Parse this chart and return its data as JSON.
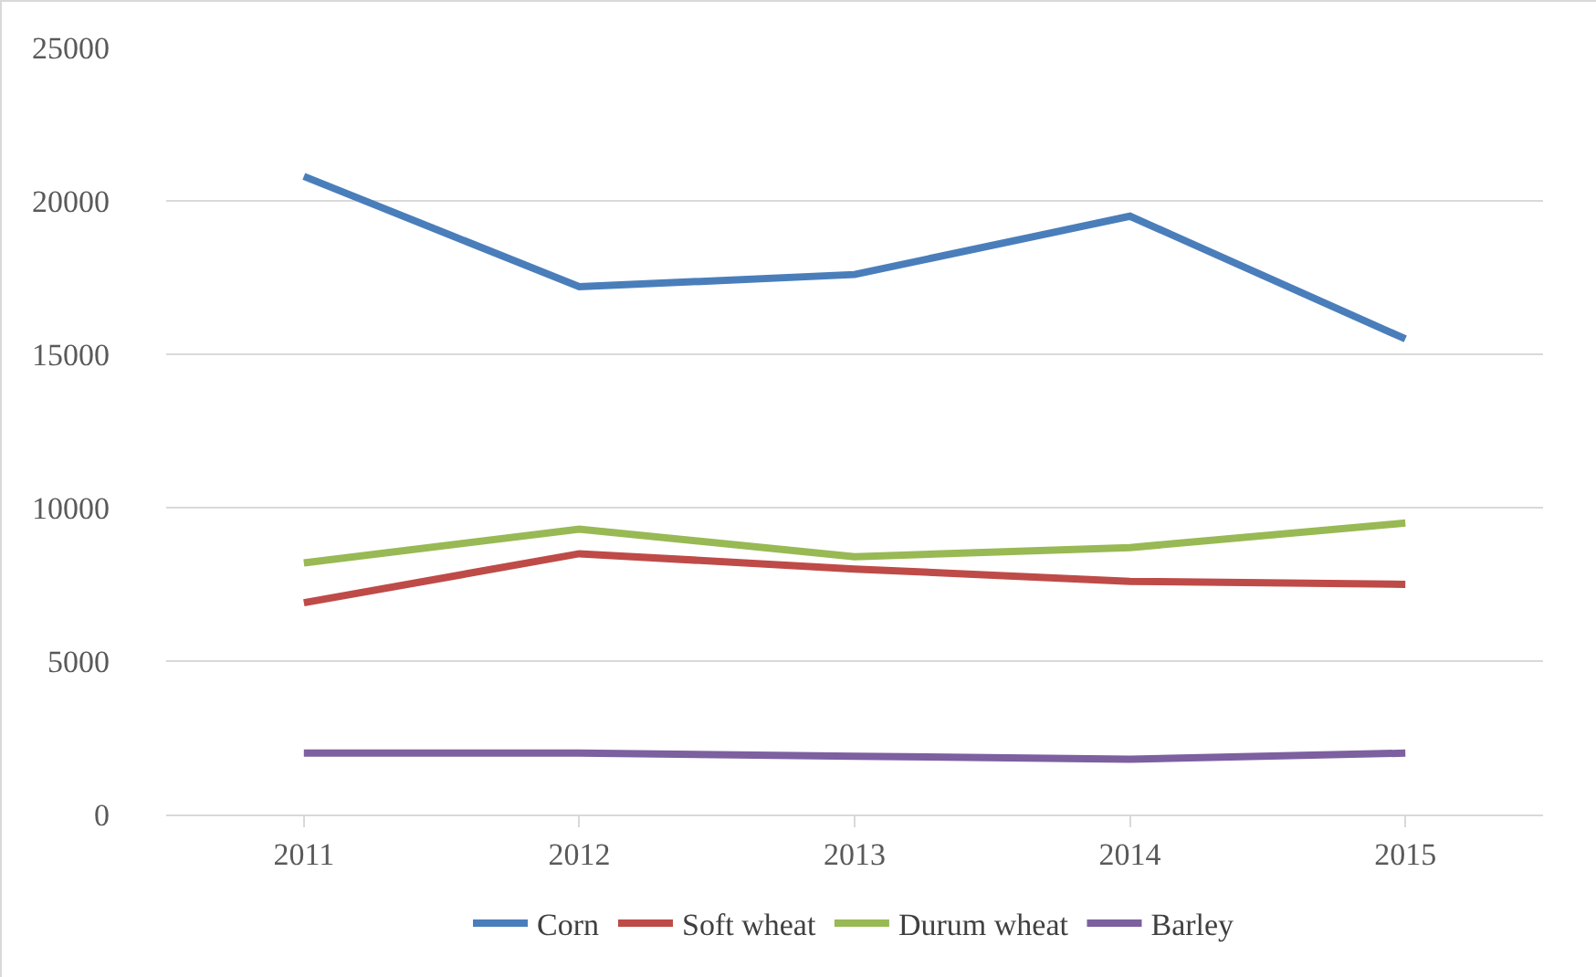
{
  "chart_data": {
    "type": "line",
    "categories": [
      "2011",
      "2012",
      "2013",
      "2014",
      "2015"
    ],
    "series": [
      {
        "name": "Corn",
        "color": "#4a7ebb",
        "values": [
          20800,
          17200,
          17600,
          19500,
          15500
        ]
      },
      {
        "name": "Soft wheat",
        "color": "#be4b48",
        "values": [
          6900,
          8500,
          8000,
          7600,
          7500
        ]
      },
      {
        "name": "Durum wheat",
        "color": "#98b954",
        "values": [
          8200,
          9300,
          8400,
          8700,
          9500
        ]
      },
      {
        "name": "Barley",
        "color": "#7d60a0",
        "values": [
          2000,
          2000,
          1900,
          1800,
          2000
        ]
      }
    ],
    "ylim": [
      0,
      25000
    ],
    "yticks": [
      0,
      5000,
      10000,
      15000,
      20000,
      25000
    ],
    "grid": "y",
    "legend": "bottom",
    "marker": "none",
    "line_style": "solid"
  }
}
